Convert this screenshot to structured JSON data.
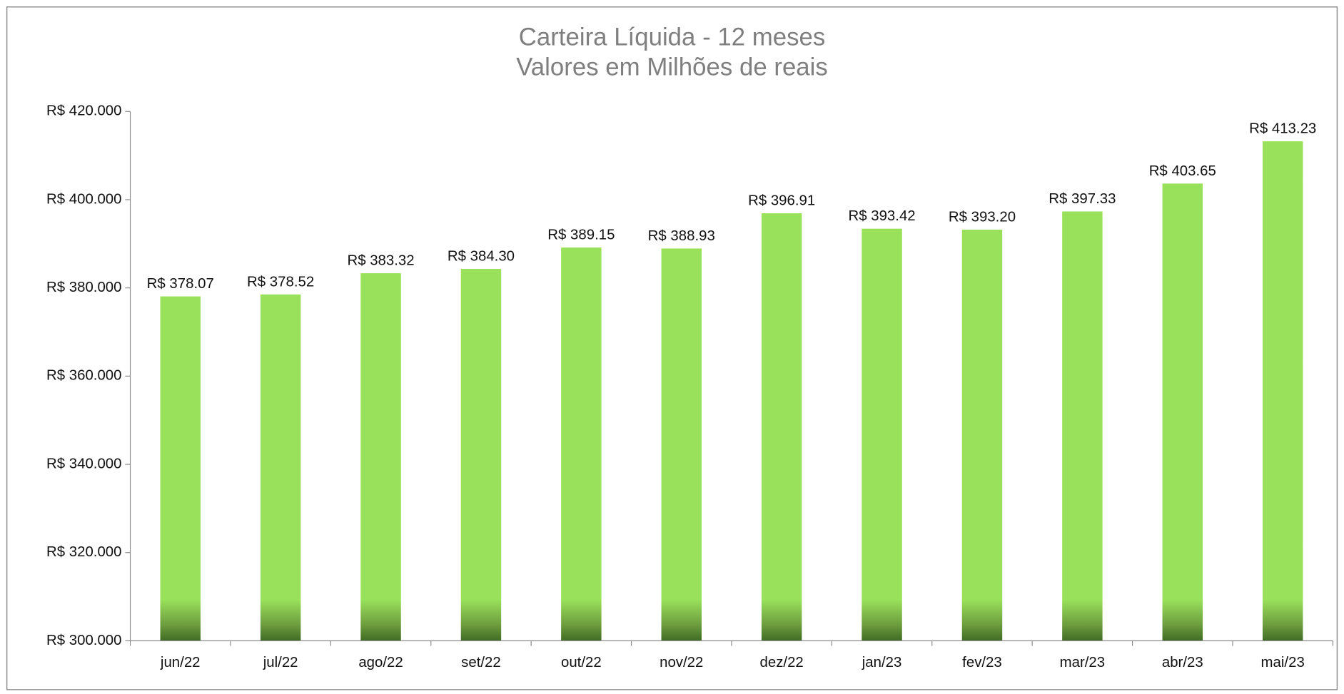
{
  "chart_data": {
    "type": "bar",
    "title": "Carteira Líquida - 12 meses",
    "subtitle": "Valores em Milhões de reais",
    "categories": [
      "jun/22",
      "jul/22",
      "ago/22",
      "set/22",
      "out/22",
      "nov/22",
      "dez/22",
      "jan/23",
      "fev/23",
      "mar/23",
      "abr/23",
      "mai/23"
    ],
    "values": [
      378070,
      378520,
      383320,
      384300,
      389150,
      388930,
      396910,
      393420,
      393200,
      397330,
      403650,
      413230
    ],
    "value_labels": [
      "R$ 378.07",
      "R$ 378.52",
      "R$ 383.32",
      "R$ 384.30",
      "R$ 389.15",
      "R$ 388.93",
      "R$ 396.91",
      "R$ 393.42",
      "R$ 393.20",
      "R$ 397.33",
      "R$ 403.65",
      "R$ 413.23"
    ],
    "color": "#99e15a",
    "ylim": [
      300000,
      420000
    ],
    "yticks": [
      {
        "value": 300000,
        "label": "R$ 300.000"
      },
      {
        "value": 320000,
        "label": "R$ 320.000"
      },
      {
        "value": 340000,
        "label": "R$ 340.000"
      },
      {
        "value": 360000,
        "label": "R$ 360.000"
      },
      {
        "value": 380000,
        "label": "R$ 380.000"
      },
      {
        "value": 400000,
        "label": "R$ 400.000"
      },
      {
        "value": 420000,
        "label": "R$ 420.000"
      }
    ],
    "grid": false
  }
}
